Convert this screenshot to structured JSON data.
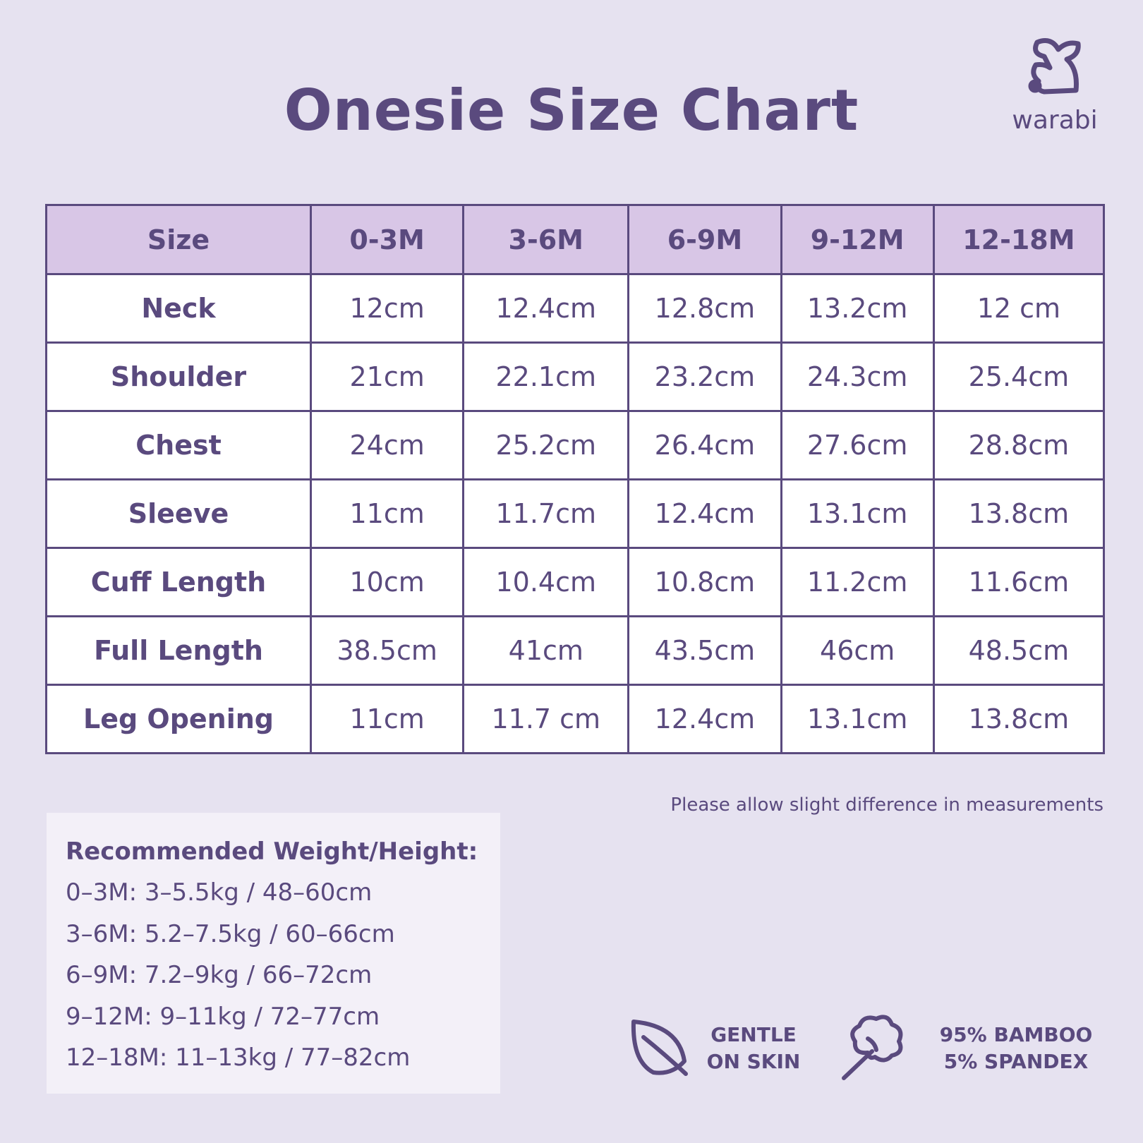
{
  "header": {
    "title": "Onesie Size Chart",
    "brand": "warabi"
  },
  "table": {
    "header": [
      "Size",
      "0-3M",
      "3-6M",
      "6-9M",
      "9-12M",
      "12-18M"
    ],
    "rows": [
      [
        "Neck",
        "12cm",
        "12.4cm",
        "12.8cm",
        "13.2cm",
        "12 cm"
      ],
      [
        "Shoulder",
        "21cm",
        "22.1cm",
        "23.2cm",
        "24.3cm",
        "25.4cm"
      ],
      [
        "Chest",
        "24cm",
        "25.2cm",
        "26.4cm",
        "27.6cm",
        "28.8cm"
      ],
      [
        "Sleeve",
        "11cm",
        "11.7cm",
        "12.4cm",
        "13.1cm",
        "13.8cm"
      ],
      [
        "Cuff Length",
        "10cm",
        "10.4cm",
        "10.8cm",
        "11.2cm",
        "11.6cm"
      ],
      [
        "Full Length",
        "38.5cm",
        "41cm",
        "43.5cm",
        "46cm",
        "48.5cm"
      ],
      [
        "Leg Opening",
        "11cm",
        "11.7 cm",
        "12.4cm",
        "13.1cm",
        "13.8cm"
      ]
    ]
  },
  "note": "Please allow slight difference in measurements",
  "recommendation": {
    "title": "Recommended Weight/Height:",
    "lines": [
      "0–3M: 3–5.5kg / 48–60cm",
      "3–6M: 5.2–7.5kg / 60–66cm",
      "6–9M: 7.2–9kg / 66–72cm",
      "9–12M: 9–11kg / 72–77cm",
      "12–18M: 11–13kg / 77–82cm"
    ]
  },
  "features": [
    {
      "lines": [
        "GENTLE",
        "ON SKIN"
      ]
    },
    {
      "lines": [
        "95% BAMBOO",
        "5% SPANDEX"
      ]
    }
  ]
}
